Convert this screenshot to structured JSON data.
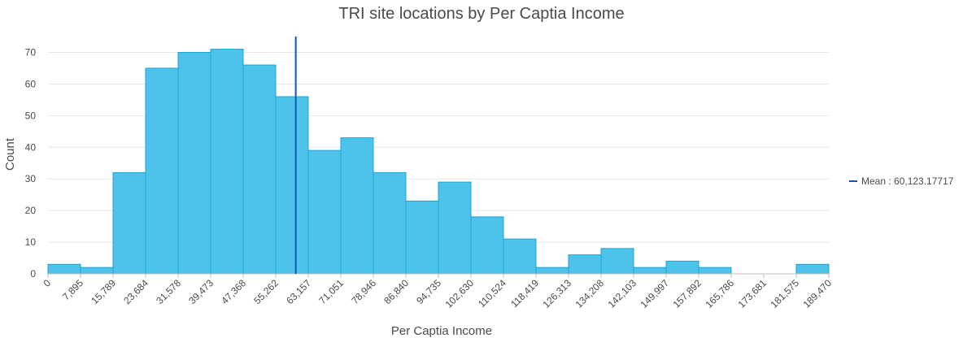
{
  "chart_data": {
    "type": "bar",
    "title": "TRI site locations by Per Captia Income",
    "xlabel": "Per Captia Income",
    "ylabel": "Count",
    "bin_edges": [
      0,
      7895,
      15789,
      23684,
      31578,
      39473,
      47368,
      55262,
      63157,
      71051,
      78946,
      86840,
      94735,
      102630,
      110524,
      118419,
      126313,
      134208,
      142103,
      149997,
      157892,
      165786,
      173681,
      181575,
      189470
    ],
    "x_tick_labels": [
      "0",
      "7,895",
      "15,789",
      "23,684",
      "31,578",
      "39,473",
      "47,368",
      "55,262",
      "63,157",
      "71,051",
      "78,946",
      "86,840",
      "94,735",
      "102,630",
      "110,524",
      "118,419",
      "126,313",
      "134,208",
      "142,103",
      "149,997",
      "157,892",
      "165,786",
      "173,681",
      "181,575",
      "189,470"
    ],
    "values": [
      3,
      2,
      32,
      65,
      70,
      71,
      66,
      56,
      39,
      43,
      32,
      23,
      29,
      18,
      11,
      2,
      6,
      8,
      2,
      4,
      2,
      0,
      0,
      3
    ],
    "ylim": [
      0,
      75
    ],
    "y_ticks": [
      0,
      10,
      20,
      30,
      40,
      50,
      60,
      70
    ],
    "grid": true,
    "bar_color": "#4dc3ec",
    "bar_edge_color": "#1aa6d8",
    "mean": {
      "value": 60123.17717,
      "legend_label": "Mean : 60,123.17717",
      "color": "#0a55b8"
    },
    "legend_position": "right"
  }
}
